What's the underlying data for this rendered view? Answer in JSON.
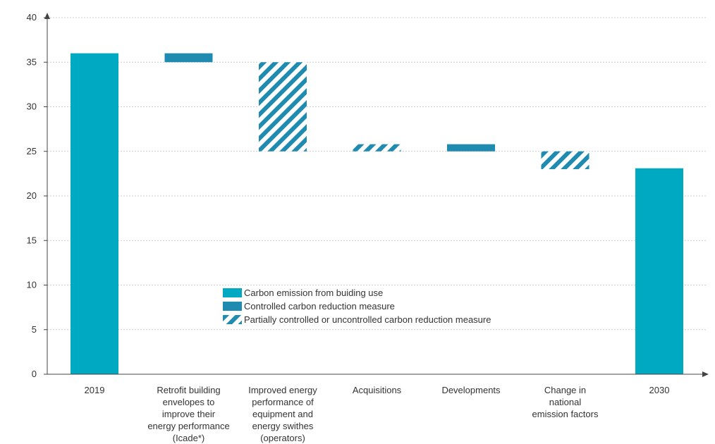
{
  "chart_data": {
    "type": "bar",
    "subtype": "waterfall",
    "ylim": [
      0,
      40
    ],
    "yticks": [
      0,
      5,
      10,
      15,
      20,
      25,
      30,
      35,
      40
    ],
    "grid": true,
    "legend_position": "center",
    "categories": [
      [
        "2019"
      ],
      [
        "Retrofit building",
        "envelopes to",
        "improve their",
        "energy performance",
        "(Icade*)"
      ],
      [
        "Improved energy",
        "performance of",
        "equipment and",
        "energy swithes",
        "(operators)"
      ],
      [
        "Acquisitions"
      ],
      [
        "Developments"
      ],
      [
        "Change in",
        "national",
        "emission factors"
      ],
      [
        "2030"
      ]
    ],
    "bars": [
      {
        "category": "2019",
        "start": 0,
        "end": 36,
        "kind": "emission"
      },
      {
        "category": "Retrofit building envelopes to improve their energy performance (Icade*)",
        "start": 35,
        "end": 36,
        "kind": "controlled"
      },
      {
        "category": "Improved energy performance of equipment and energy swithes (operators)",
        "start": 25,
        "end": 35,
        "kind": "partial"
      },
      {
        "category": "Acquisitions",
        "start": 25,
        "end": 25.8,
        "kind": "partial"
      },
      {
        "category": "Developments",
        "start": 25,
        "end": 25.8,
        "kind": "controlled"
      },
      {
        "category": "Change in national emission factors",
        "start": 23,
        "end": 25,
        "kind": "partial"
      },
      {
        "category": "2030",
        "start": 0,
        "end": 23.1,
        "kind": "emission"
      }
    ],
    "legend": [
      {
        "kind": "emission",
        "label": "Carbon emission from buiding use"
      },
      {
        "kind": "controlled",
        "label": "Controlled carbon reduction measure"
      },
      {
        "kind": "partial",
        "label": "Partially controlled or uncontrolled carbon reduction measure"
      }
    ],
    "colors": {
      "emission": "#00a9c2",
      "controlled": "#1f8bb0",
      "axis": "#444444",
      "grid": "#cccccc"
    }
  }
}
